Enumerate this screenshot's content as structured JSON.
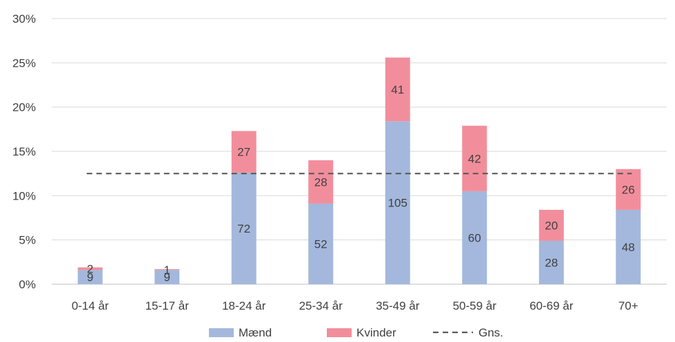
{
  "chart_data": {
    "type": "bar",
    "stacked": true,
    "categories": [
      "0-14 år",
      "15-17 år",
      "18-24 år",
      "25-34 år",
      "35-49 år",
      "50-59 år",
      "60-69 år",
      "70+"
    ],
    "series": [
      {
        "name": "Mænd",
        "color": "#a3b8dc",
        "values_percent": [
          1.6,
          1.6,
          12.6,
          9.1,
          18.4,
          10.5,
          4.9,
          8.4
        ],
        "labels": [
          "9",
          "9",
          "72",
          "52",
          "105",
          "60",
          "28",
          "48"
        ]
      },
      {
        "name": "Kvinder",
        "color": "#f28e9c",
        "values_percent": [
          0.3,
          0.1,
          4.7,
          4.9,
          7.2,
          7.4,
          3.5,
          4.6
        ],
        "labels": [
          "2",
          "1",
          "27",
          "28",
          "41",
          "42",
          "20",
          "26"
        ]
      }
    ],
    "average_line": {
      "name": "Gns.",
      "value_percent": 12.5,
      "color": "#595959",
      "style": "dashed"
    },
    "y_ticks": [
      "0%",
      "5%",
      "10%",
      "15%",
      "20%",
      "25%",
      "30%"
    ],
    "ylim": [
      0,
      30
    ],
    "grid": true,
    "legend": "bottom"
  }
}
